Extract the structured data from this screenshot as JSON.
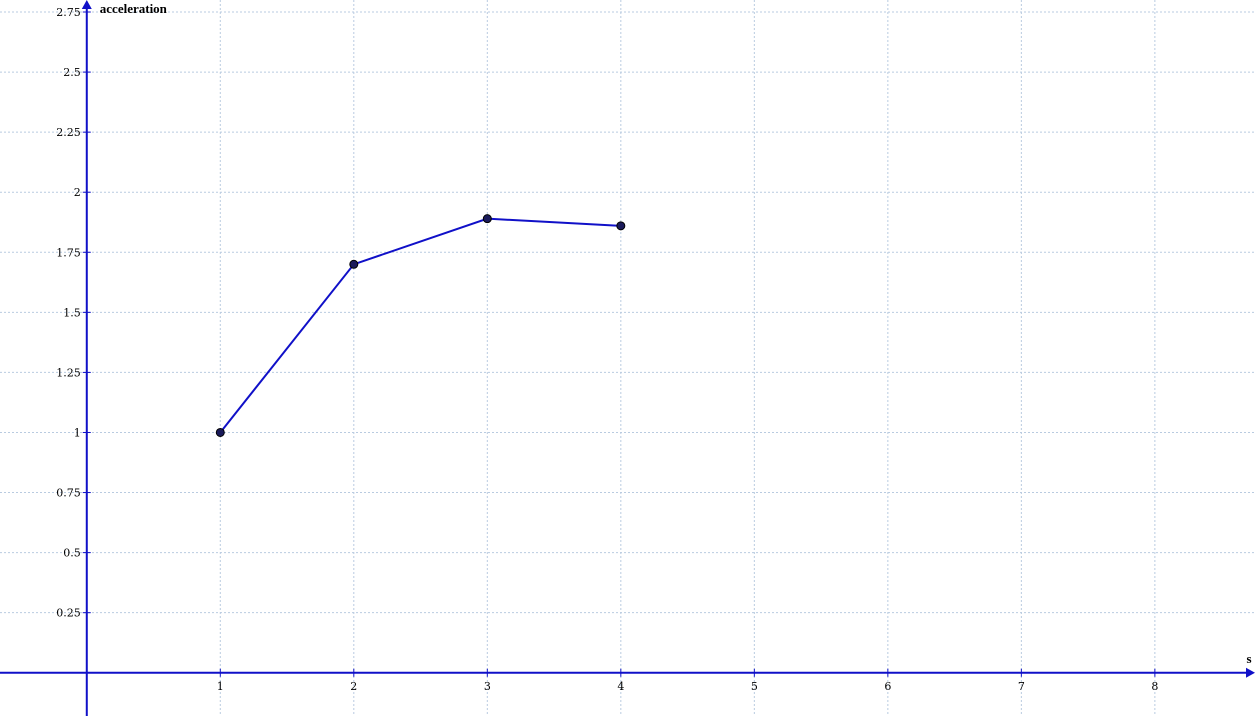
{
  "chart_data": {
    "type": "line",
    "title": "",
    "xlabel": "s",
    "ylabel": "acceleration",
    "xlim": [
      -0.65,
      8.75
    ],
    "ylim": [
      -0.18,
      2.8
    ],
    "x_ticks": [
      1,
      2,
      3,
      4,
      5,
      6,
      7,
      8
    ],
    "y_ticks": [
      0.25,
      0.5,
      0.75,
      1,
      1.25,
      1.5,
      1.75,
      2,
      2.25,
      2.5,
      2.75
    ],
    "x_tick_labels": [
      "1",
      "2",
      "3",
      "4",
      "5",
      "6",
      "7",
      "8"
    ],
    "y_tick_labels": [
      "0.25",
      "0.5",
      "0.75",
      "1",
      "1.25",
      "1.5",
      "1.75",
      "2",
      "2.25",
      "2.5",
      "2.75"
    ],
    "grid": true,
    "series": [
      {
        "x": [
          1,
          2,
          3,
          4
        ],
        "values": [
          1.0,
          1.7,
          1.89,
          1.86
        ],
        "color": "#1010c8",
        "marker_color": "#1a1a5a"
      }
    ],
    "axis_color": "#1010c8",
    "grid_color": "#b9cbe0"
  }
}
